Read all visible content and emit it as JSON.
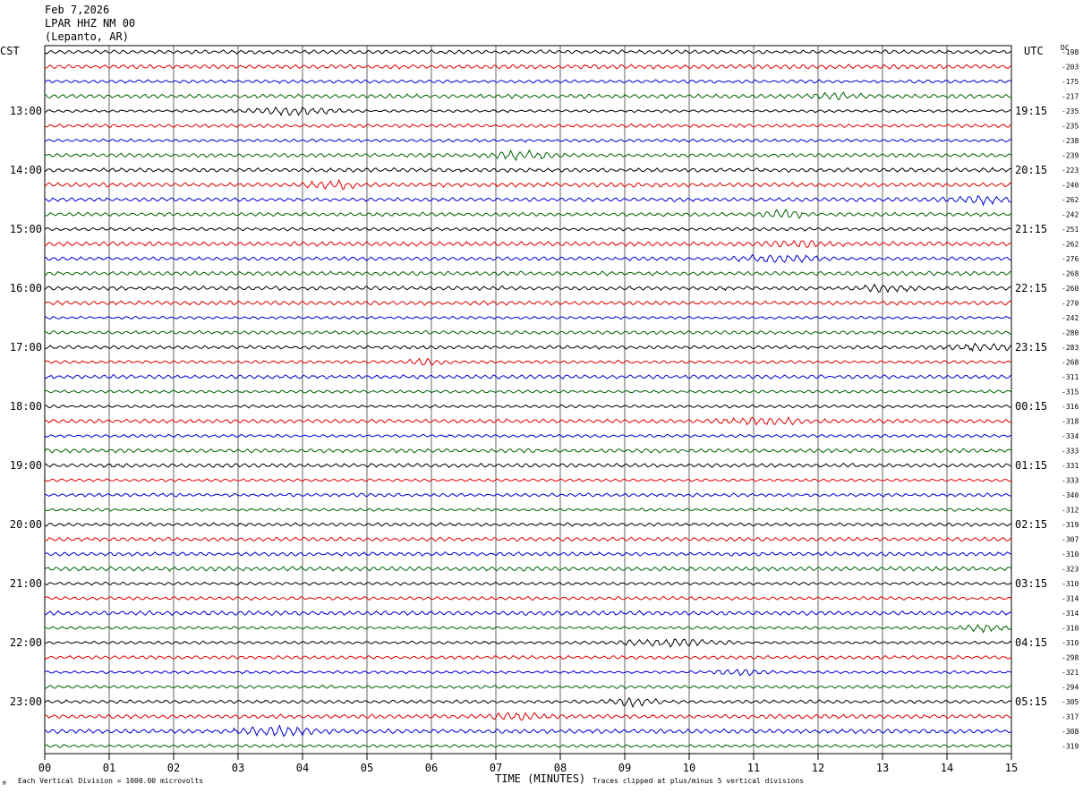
{
  "header": {
    "date": "Feb 7,2026",
    "station": "LPAR HHZ NM 00",
    "location": "(Lepanto, AR)"
  },
  "labels": {
    "left_tz": "CST",
    "right_tz": "UTC",
    "dc_header": "DC",
    "xlabel": "TIME (MINUTES)",
    "scale_note": "Each Vertical Division = 1000.00 microvolts",
    "clip_note": "Traces clipped at plus/minus 5 vertical divisions",
    "corner_mark": "M"
  },
  "trace_colors": [
    "#000000",
    "#e00000",
    "#0000d0",
    "#006400"
  ],
  "chart_data": {
    "type": "line",
    "title": "LPAR HHZ NM 00",
    "xlabel": "TIME (MINUTES)",
    "x_ticks": [
      "00",
      "01",
      "02",
      "03",
      "04",
      "05",
      "06",
      "07",
      "08",
      "09",
      "10",
      "11",
      "12",
      "13",
      "14",
      "15"
    ],
    "xlim": [
      0,
      15
    ],
    "cst_hour_labels": [
      "13:00",
      "14:00",
      "15:00",
      "16:00",
      "17:00",
      "18:00",
      "19:00",
      "20:00",
      "21:00",
      "22:00",
      "23:00"
    ],
    "utc_hour_labels": [
      "19:15",
      "20:15",
      "21:15",
      "22:15",
      "23:15",
      "00:15",
      "01:15",
      "02:15",
      "03:15",
      "04:15",
      "05:15"
    ],
    "traces_per_hour": 4,
    "trace_count": 48,
    "dc_offsets": [
      -198,
      -203,
      -175,
      -217,
      -235,
      -235,
      -238,
      -239,
      -223,
      -240,
      -262,
      -242,
      -251,
      -262,
      -276,
      -268,
      -260,
      -270,
      -242,
      -280,
      -283,
      -268,
      -311,
      -315,
      -316,
      -318,
      -334,
      -333,
      -331,
      -333,
      -340,
      -312,
      -319,
      -307,
      -310,
      -323,
      -310,
      -314,
      -314,
      -310,
      -310,
      -298,
      -321,
      -294,
      -305,
      -317,
      -308,
      -319
    ]
  }
}
